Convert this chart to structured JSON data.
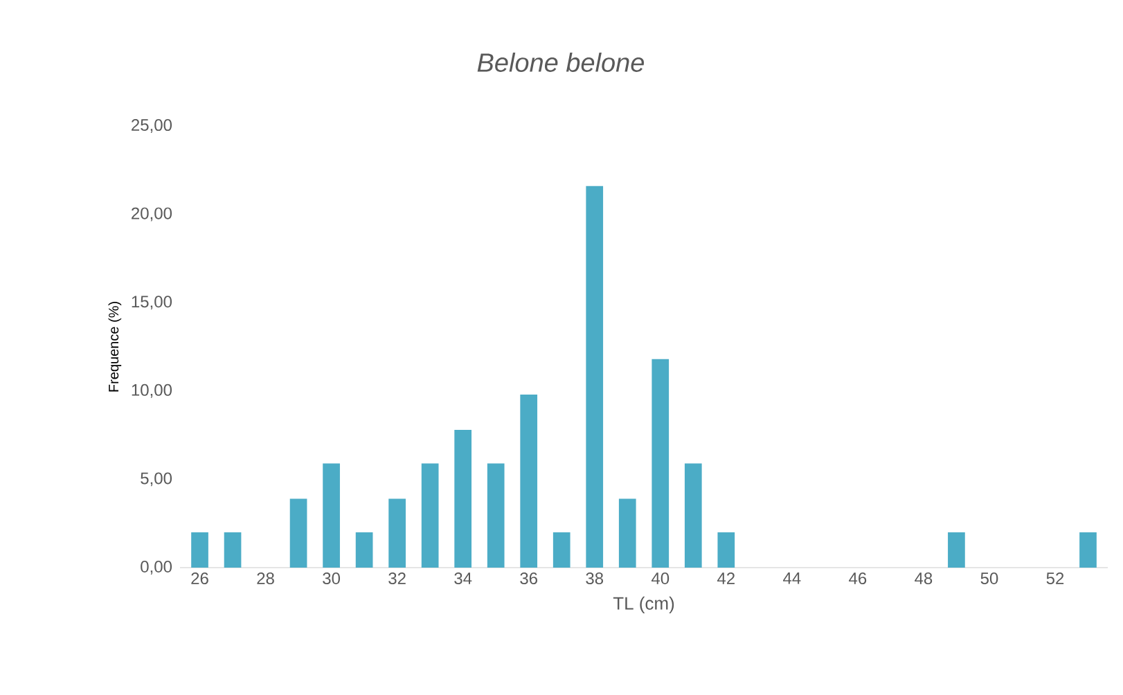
{
  "chart_data": {
    "type": "bar",
    "title": "Belone belone",
    "xlabel": "TL (cm)",
    "ylabel": "Frequence (%)",
    "categories": [
      "26",
      null,
      "28",
      null,
      "30",
      null,
      "32",
      null,
      "34",
      null,
      "36",
      null,
      "38",
      null,
      "40",
      null,
      "42",
      null,
      "44",
      null,
      "46",
      null,
      "48",
      null,
      "50",
      null,
      "52",
      null
    ],
    "values": [
      2.0,
      2.0,
      0,
      3.9,
      5.9,
      2.0,
      3.9,
      5.9,
      7.8,
      5.9,
      9.8,
      2.0,
      21.6,
      3.9,
      11.8,
      5.9,
      2.0,
      0,
      0,
      0,
      0,
      0,
      0,
      2.0,
      0,
      0,
      0,
      2.0
    ],
    "color": "#4bacc6",
    "ylim": [
      0,
      25
    ],
    "yticks": [
      {
        "value": 0,
        "label": "0,00"
      },
      {
        "value": 5,
        "label": "5,00"
      },
      {
        "value": 10,
        "label": "10,00"
      },
      {
        "value": 15,
        "label": "15,00"
      },
      {
        "value": 20,
        "label": "20,00"
      },
      {
        "value": 25,
        "label": "25,00"
      }
    ],
    "grid": false
  }
}
